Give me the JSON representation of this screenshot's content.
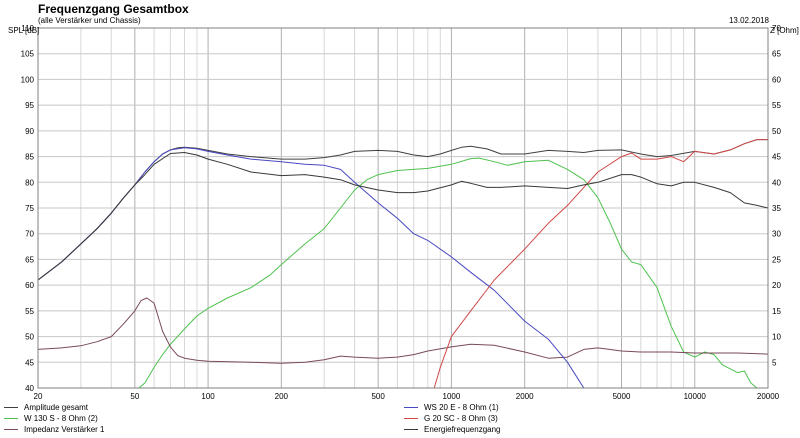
{
  "title": "Frequenzgang Gesamtbox",
  "subtitle": "(alle Verstärker und Chassis)",
  "date": "13.02.2018",
  "chart_data": {
    "type": "line",
    "title": "Frequenzgang Gesamtbox",
    "subtitle": "(alle Verstärker und Chassis)",
    "xscale": "log",
    "xlim": [
      20,
      20000
    ],
    "ylim": [
      40,
      110
    ],
    "y2lim": [
      0,
      70
    ],
    "ylabel": "SPL [dB]",
    "y2label": "Z [Ohm]",
    "grid": true,
    "legend_placement": "bottom",
    "x_ticks": [
      20,
      50,
      100,
      200,
      500,
      1000,
      2000,
      5000,
      10000,
      20000
    ],
    "x_tick_labels": [
      "20",
      "50",
      "100",
      "200",
      "500",
      "1000",
      "2000",
      "5000",
      "10000",
      "20000"
    ],
    "y_ticks": [
      40,
      45,
      50,
      55,
      60,
      65,
      70,
      75,
      80,
      85,
      90,
      95,
      100,
      105,
      110
    ],
    "y_tick_labels": [
      "40",
      "45",
      "50",
      "55",
      "60",
      "65",
      "70",
      "75",
      "80",
      "85",
      "90",
      "95",
      "100",
      "105",
      "110"
    ],
    "y2_ticks": [
      5,
      10,
      15,
      20,
      25,
      30,
      35,
      40,
      45,
      50,
      55,
      60,
      65,
      70
    ],
    "y2_tick_labels": [
      "5",
      "10",
      "15",
      "20",
      "25",
      "30",
      "35",
      "40",
      "45",
      "50",
      "55",
      "60",
      "65",
      "70"
    ],
    "series": [
      {
        "name": "Amplitude gesamt",
        "color": "#404040",
        "axis": "left",
        "points": [
          [
            20,
            61
          ],
          [
            25,
            64.5
          ],
          [
            30,
            68
          ],
          [
            35,
            71
          ],
          [
            40,
            74
          ],
          [
            45,
            77
          ],
          [
            50,
            79.5
          ],
          [
            55,
            82
          ],
          [
            60,
            84
          ],
          [
            65,
            85.5
          ],
          [
            70,
            86.3
          ],
          [
            75,
            86.7
          ],
          [
            80,
            86.8
          ],
          [
            90,
            86.6
          ],
          [
            100,
            86.2
          ],
          [
            120,
            85.5
          ],
          [
            150,
            85
          ],
          [
            200,
            84.5
          ],
          [
            250,
            84.5
          ],
          [
            300,
            84.8
          ],
          [
            350,
            85.3
          ],
          [
            400,
            86
          ],
          [
            500,
            86.2
          ],
          [
            600,
            86
          ],
          [
            700,
            85.3
          ],
          [
            800,
            85
          ],
          [
            900,
            85.5
          ],
          [
            1000,
            86.2
          ],
          [
            1100,
            86.8
          ],
          [
            1200,
            87
          ],
          [
            1400,
            86.5
          ],
          [
            1600,
            85.5
          ],
          [
            2000,
            85.5
          ],
          [
            2500,
            86.2
          ],
          [
            3000,
            86
          ],
          [
            3500,
            85.8
          ],
          [
            4000,
            86.2
          ],
          [
            5000,
            86.3
          ],
          [
            6000,
            85.5
          ],
          [
            7000,
            85
          ],
          [
            8000,
            85.2
          ],
          [
            10000,
            86
          ],
          [
            12000,
            85.5
          ],
          [
            14000,
            86.3
          ],
          [
            16000,
            87.5
          ],
          [
            18000,
            88.3
          ],
          [
            20000,
            88.3
          ]
        ]
      },
      {
        "name": "W 130 S - 8 Ohm (2)",
        "color": "#4ec24e",
        "axis": "left",
        "points": [
          [
            20,
            40
          ],
          [
            50,
            40
          ],
          [
            52,
            40
          ],
          [
            55,
            41
          ],
          [
            60,
            44
          ],
          [
            65,
            46.5
          ],
          [
            70,
            48.5
          ],
          [
            80,
            51.5
          ],
          [
            90,
            54
          ],
          [
            100,
            55.5
          ],
          [
            120,
            57.5
          ],
          [
            150,
            59.5
          ],
          [
            180,
            62
          ],
          [
            200,
            64
          ],
          [
            250,
            68
          ],
          [
            300,
            71
          ],
          [
            350,
            75
          ],
          [
            400,
            78.5
          ],
          [
            450,
            80.5
          ],
          [
            500,
            81.5
          ],
          [
            600,
            82.3
          ],
          [
            800,
            82.7
          ],
          [
            1000,
            83.5
          ],
          [
            1200,
            84.6
          ],
          [
            1300,
            84.7
          ],
          [
            1500,
            84
          ],
          [
            1700,
            83.3
          ],
          [
            2000,
            84
          ],
          [
            2500,
            84.3
          ],
          [
            3000,
            82.5
          ],
          [
            3500,
            80.5
          ],
          [
            4000,
            77
          ],
          [
            4500,
            72
          ],
          [
            5000,
            67
          ],
          [
            5500,
            64.5
          ],
          [
            6000,
            64
          ],
          [
            7000,
            59.5
          ],
          [
            8000,
            52
          ],
          [
            9000,
            47
          ],
          [
            10000,
            46
          ],
          [
            11000,
            47
          ],
          [
            12000,
            46.5
          ],
          [
            13000,
            44.5
          ],
          [
            15000,
            43
          ],
          [
            16000,
            43.3
          ],
          [
            17000,
            41
          ],
          [
            18000,
            40
          ],
          [
            20000,
            40
          ]
        ]
      },
      {
        "name": "Impedanz Verstärker 1",
        "color": "#7a4a5a",
        "axis": "right",
        "points": [
          [
            20,
            7.5
          ],
          [
            25,
            7.8
          ],
          [
            30,
            8.2
          ],
          [
            35,
            9
          ],
          [
            40,
            10
          ],
          [
            45,
            12.5
          ],
          [
            50,
            15
          ],
          [
            53,
            17
          ],
          [
            56,
            17.5
          ],
          [
            60,
            16.5
          ],
          [
            65,
            11
          ],
          [
            70,
            8
          ],
          [
            75,
            6.3
          ],
          [
            80,
            5.8
          ],
          [
            90,
            5.4
          ],
          [
            100,
            5.2
          ],
          [
            150,
            5.0
          ],
          [
            200,
            4.8
          ],
          [
            250,
            5.0
          ],
          [
            300,
            5.5
          ],
          [
            350,
            6.2
          ],
          [
            400,
            6.0
          ],
          [
            500,
            5.8
          ],
          [
            600,
            6.0
          ],
          [
            700,
            6.5
          ],
          [
            800,
            7.2
          ],
          [
            1000,
            8.0
          ],
          [
            1200,
            8.5
          ],
          [
            1500,
            8.3
          ],
          [
            2000,
            7.0
          ],
          [
            2500,
            5.8
          ],
          [
            3000,
            6.0
          ],
          [
            3500,
            7.5
          ],
          [
            4000,
            7.8
          ],
          [
            5000,
            7.2
          ],
          [
            6000,
            7.0
          ],
          [
            8000,
            7.0
          ],
          [
            10000,
            6.8
          ],
          [
            15000,
            6.8
          ],
          [
            20000,
            6.6
          ]
        ]
      },
      {
        "name": "WS 20 E - 8 Ohm   (1)",
        "color": "#4848c0",
        "axis": "left",
        "points": [
          [
            20,
            61
          ],
          [
            25,
            64.5
          ],
          [
            30,
            68
          ],
          [
            35,
            71
          ],
          [
            40,
            74
          ],
          [
            45,
            77
          ],
          [
            50,
            79.5
          ],
          [
            55,
            82
          ],
          [
            60,
            84
          ],
          [
            65,
            85.5
          ],
          [
            70,
            86.3
          ],
          [
            80,
            86.7
          ],
          [
            90,
            86.5
          ],
          [
            100,
            86
          ],
          [
            120,
            85.3
          ],
          [
            150,
            84.5
          ],
          [
            200,
            84
          ],
          [
            250,
            83.5
          ],
          [
            300,
            83.3
          ],
          [
            350,
            82.5
          ],
          [
            400,
            80
          ],
          [
            500,
            76
          ],
          [
            600,
            73
          ],
          [
            700,
            70
          ],
          [
            800,
            68.7
          ],
          [
            1000,
            65.5
          ],
          [
            1200,
            62.5
          ],
          [
            1500,
            59
          ],
          [
            2000,
            53
          ],
          [
            2500,
            49.5
          ],
          [
            3000,
            45
          ],
          [
            3500,
            40
          ],
          [
            20000,
            40
          ]
        ]
      },
      {
        "name": "G 20 SC - 8 Ohm (3)",
        "color": "#d04848",
        "axis": "left",
        "points": [
          [
            20,
            40
          ],
          [
            820,
            40
          ],
          [
            850,
            40
          ],
          [
            900,
            44
          ],
          [
            1000,
            50
          ],
          [
            1200,
            55
          ],
          [
            1500,
            61
          ],
          [
            2000,
            67
          ],
          [
            2500,
            72
          ],
          [
            3000,
            75.5
          ],
          [
            3500,
            79
          ],
          [
            4000,
            82
          ],
          [
            5000,
            85
          ],
          [
            5500,
            85.7
          ],
          [
            6000,
            84.5
          ],
          [
            7000,
            84.5
          ],
          [
            8000,
            85
          ],
          [
            9000,
            84
          ],
          [
            10000,
            86
          ],
          [
            12000,
            85.5
          ],
          [
            14000,
            86.3
          ],
          [
            16000,
            87.5
          ],
          [
            18000,
            88.3
          ],
          [
            20000,
            88.3
          ]
        ]
      },
      {
        "name": "Energiefrequenzgang",
        "color": "#383838",
        "axis": "left",
        "points": [
          [
            20,
            61
          ],
          [
            25,
            64.5
          ],
          [
            30,
            68
          ],
          [
            35,
            71
          ],
          [
            40,
            74
          ],
          [
            45,
            77
          ],
          [
            50,
            79.5
          ],
          [
            55,
            81.5
          ],
          [
            60,
            83.5
          ],
          [
            70,
            85.6
          ],
          [
            80,
            85.8
          ],
          [
            90,
            85.3
          ],
          [
            100,
            84.5
          ],
          [
            120,
            83.5
          ],
          [
            150,
            82
          ],
          [
            200,
            81.3
          ],
          [
            250,
            81.5
          ],
          [
            300,
            81
          ],
          [
            350,
            80.5
          ],
          [
            400,
            79.5
          ],
          [
            500,
            78.5
          ],
          [
            600,
            78
          ],
          [
            700,
            78
          ],
          [
            800,
            78.3
          ],
          [
            1000,
            79.5
          ],
          [
            1100,
            80.2
          ],
          [
            1200,
            79.8
          ],
          [
            1400,
            79
          ],
          [
            1600,
            79
          ],
          [
            2000,
            79.3
          ],
          [
            2500,
            79
          ],
          [
            3000,
            78.8
          ],
          [
            3500,
            79.5
          ],
          [
            4000,
            80
          ],
          [
            5000,
            81.5
          ],
          [
            5500,
            81.5
          ],
          [
            6000,
            81
          ],
          [
            7000,
            79.7
          ],
          [
            8000,
            79.3
          ],
          [
            9000,
            80
          ],
          [
            10000,
            80
          ],
          [
            12000,
            79
          ],
          [
            14000,
            78
          ],
          [
            16000,
            76
          ],
          [
            18000,
            75.5
          ],
          [
            20000,
            75
          ]
        ]
      }
    ]
  }
}
